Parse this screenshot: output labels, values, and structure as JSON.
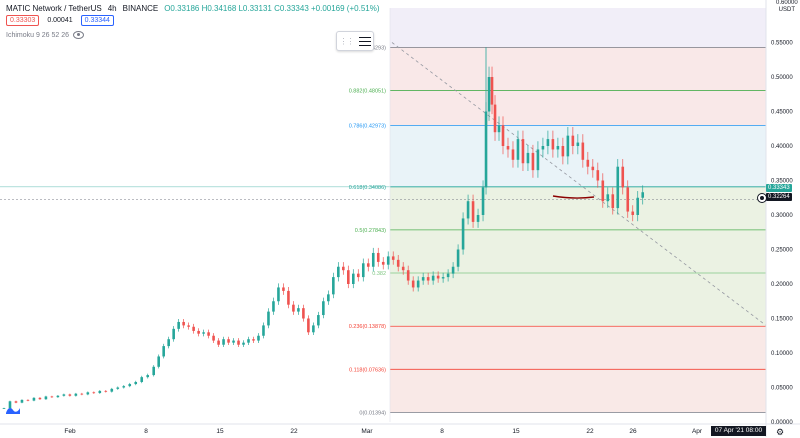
{
  "header": {
    "symbol": "MATIC Network / TetherUS",
    "interval": "4h",
    "exchange": "BINANCE",
    "ohlc": "O0.33186 H0.34168 L0.33131 C0.33343 +0.00169 (+0.51%)",
    "sell_price": "0.33303",
    "spread": "0.00041",
    "buy_price": "0.33344"
  },
  "indicator": {
    "label": "Ichimoku 9 26 52 26",
    "icon": "eye-icon"
  },
  "toolbar": {
    "icon": "menu-lines-icon"
  },
  "axis": {
    "currency": "USDT",
    "top_label": "0.60000",
    "price_labels": [
      "0.55000",
      "0.50000",
      "0.45000",
      "0.40000",
      "0.35000",
      "0.30000",
      "0.25000",
      "0.20000",
      "0.15000",
      "0.10000",
      "0.05000",
      "0.00000"
    ],
    "current_price": "0.33343",
    "crosshair_price": "0.32264",
    "time_labels": [
      "Feb",
      "8",
      "15",
      "22",
      "Mar",
      "8",
      "15",
      "22",
      "26",
      "Apr"
    ],
    "crosshair_time": "07 Apr '21  08:00"
  },
  "fib_levels": [
    {
      "label": "1(0.54293)",
      "price": 0.54293,
      "color": "#787b86"
    },
    {
      "label": "0.882(0.48051)",
      "price": 0.48051,
      "color": "#4caf50"
    },
    {
      "label": "0.786(0.42973)",
      "price": 0.42973,
      "color": "#2196f3"
    },
    {
      "label": "0.618(0.34086)",
      "price": 0.34086,
      "color": "#26a69a"
    },
    {
      "label": "0.5(0.27843)",
      "price": 0.27843,
      "color": "#4caf50"
    },
    {
      "label": "0.382",
      "price": 0.21599,
      "color": "#81c784"
    },
    {
      "label": "0.236(0.13878)",
      "price": 0.13878,
      "color": "#f44336"
    },
    {
      "label": "0.118(0.07636)",
      "price": 0.07636,
      "color": "#f44336"
    },
    {
      "label": "0(0.01394)",
      "price": 0.01394,
      "color": "#787b86"
    }
  ],
  "colors": {
    "up": "#26a69a",
    "down": "#ef5350",
    "fib_upper_fill": "#f8e2e2",
    "fib_mid_fill": "#e6efdc",
    "fib_low_fill": "#f7e3e1",
    "hand_mark": "#8b0000"
  },
  "chart_data": {
    "type": "candlestick",
    "y_range": [
      0.0,
      0.6
    ],
    "series": [
      {
        "x": 0,
        "close": 0.02
      },
      {
        "x": 6,
        "close": 0.03
      },
      {
        "x": 12,
        "close": 0.028
      },
      {
        "x": 18,
        "close": 0.032
      },
      {
        "x": 24,
        "close": 0.031
      },
      {
        "x": 30,
        "close": 0.035
      },
      {
        "x": 36,
        "close": 0.033
      },
      {
        "x": 42,
        "close": 0.037
      },
      {
        "x": 48,
        "close": 0.036
      },
      {
        "x": 54,
        "close": 0.038
      },
      {
        "x": 60,
        "close": 0.04
      },
      {
        "x": 66,
        "close": 0.038
      },
      {
        "x": 72,
        "close": 0.041
      },
      {
        "x": 78,
        "close": 0.04
      },
      {
        "x": 84,
        "close": 0.043
      },
      {
        "x": 90,
        "close": 0.042
      },
      {
        "x": 96,
        "close": 0.045
      },
      {
        "x": 102,
        "close": 0.044
      },
      {
        "x": 108,
        "close": 0.048
      },
      {
        "x": 114,
        "close": 0.05
      },
      {
        "x": 120,
        "close": 0.052
      },
      {
        "x": 126,
        "close": 0.055
      },
      {
        "x": 132,
        "close": 0.058
      },
      {
        "x": 138,
        "close": 0.065
      },
      {
        "x": 144,
        "close": 0.068
      },
      {
        "x": 150,
        "close": 0.08
      },
      {
        "x": 155,
        "close": 0.095
      },
      {
        "x": 160,
        "close": 0.11
      },
      {
        "x": 165,
        "close": 0.12
      },
      {
        "x": 170,
        "close": 0.135
      },
      {
        "x": 175,
        "close": 0.145
      },
      {
        "x": 180,
        "close": 0.14
      },
      {
        "x": 185,
        "close": 0.138
      },
      {
        "x": 190,
        "close": 0.132
      },
      {
        "x": 195,
        "close": 0.128
      },
      {
        "x": 200,
        "close": 0.13
      },
      {
        "x": 205,
        "close": 0.125
      },
      {
        "x": 210,
        "close": 0.118
      },
      {
        "x": 215,
        "close": 0.112
      },
      {
        "x": 220,
        "close": 0.12
      },
      {
        "x": 225,
        "close": 0.115
      },
      {
        "x": 230,
        "close": 0.118
      },
      {
        "x": 235,
        "close": 0.112
      },
      {
        "x": 240,
        "close": 0.115
      },
      {
        "x": 245,
        "close": 0.12
      },
      {
        "x": 250,
        "close": 0.118
      },
      {
        "x": 255,
        "close": 0.125
      },
      {
        "x": 260,
        "close": 0.14
      },
      {
        "x": 265,
        "close": 0.16
      },
      {
        "x": 270,
        "close": 0.175
      },
      {
        "x": 275,
        "close": 0.195
      },
      {
        "x": 280,
        "close": 0.19
      },
      {
        "x": 285,
        "close": 0.17
      },
      {
        "x": 290,
        "close": 0.16
      },
      {
        "x": 295,
        "close": 0.165
      },
      {
        "x": 300,
        "close": 0.15
      },
      {
        "x": 305,
        "close": 0.13
      },
      {
        "x": 310,
        "close": 0.14
      },
      {
        "x": 315,
        "close": 0.155
      },
      {
        "x": 320,
        "close": 0.175
      },
      {
        "x": 325,
        "close": 0.185
      },
      {
        "x": 330,
        "close": 0.21
      },
      {
        "x": 335,
        "close": 0.225
      },
      {
        "x": 340,
        "close": 0.22
      },
      {
        "x": 345,
        "close": 0.2
      },
      {
        "x": 350,
        "close": 0.215
      },
      {
        "x": 355,
        "close": 0.21
      },
      {
        "x": 360,
        "close": 0.23
      },
      {
        "x": 365,
        "close": 0.225
      },
      {
        "x": 370,
        "close": 0.245
      },
      {
        "x": 375,
        "close": 0.232
      },
      {
        "x": 380,
        "close": 0.228
      },
      {
        "x": 385,
        "close": 0.24
      },
      {
        "x": 390,
        "close": 0.235
      },
      {
        "x": 395,
        "close": 0.225
      },
      {
        "x": 400,
        "close": 0.22
      },
      {
        "x": 405,
        "close": 0.205
      },
      {
        "x": 410,
        "close": 0.195
      },
      {
        "x": 415,
        "close": 0.205
      },
      {
        "x": 420,
        "close": 0.21
      },
      {
        "x": 425,
        "close": 0.205
      },
      {
        "x": 430,
        "close": 0.212
      },
      {
        "x": 435,
        "close": 0.208
      },
      {
        "x": 440,
        "close": 0.21
      },
      {
        "x": 445,
        "close": 0.215
      },
      {
        "x": 450,
        "close": 0.225
      },
      {
        "x": 455,
        "close": 0.25
      },
      {
        "x": 460,
        "close": 0.295
      },
      {
        "x": 465,
        "close": 0.32
      },
      {
        "x": 470,
        "close": 0.29
      },
      {
        "x": 475,
        "close": 0.3
      },
      {
        "x": 480,
        "close": 0.34
      },
      {
        "x": 483,
        "close": 0.45
      },
      {
        "x": 486,
        "close": 0.5
      },
      {
        "x": 489,
        "close": 0.46
      },
      {
        "x": 492,
        "close": 0.42
      },
      {
        "x": 496,
        "close": 0.43
      },
      {
        "x": 500,
        "close": 0.4
      },
      {
        "x": 505,
        "close": 0.395
      },
      {
        "x": 510,
        "close": 0.38
      },
      {
        "x": 515,
        "close": 0.41
      },
      {
        "x": 520,
        "close": 0.375
      },
      {
        "x": 525,
        "close": 0.39
      },
      {
        "x": 530,
        "close": 0.365
      },
      {
        "x": 535,
        "close": 0.395
      },
      {
        "x": 540,
        "close": 0.4
      },
      {
        "x": 545,
        "close": 0.41
      },
      {
        "x": 550,
        "close": 0.395
      },
      {
        "x": 555,
        "close": 0.4
      },
      {
        "x": 560,
        "close": 0.385
      },
      {
        "x": 565,
        "close": 0.415
      },
      {
        "x": 570,
        "close": 0.4
      },
      {
        "x": 575,
        "close": 0.405
      },
      {
        "x": 580,
        "close": 0.38
      },
      {
        "x": 585,
        "close": 0.37
      },
      {
        "x": 590,
        "close": 0.365
      },
      {
        "x": 595,
        "close": 0.35
      },
      {
        "x": 600,
        "close": 0.32
      },
      {
        "x": 605,
        "close": 0.33
      },
      {
        "x": 610,
        "close": 0.31
      },
      {
        "x": 615,
        "close": 0.37
      },
      {
        "x": 620,
        "close": 0.34
      },
      {
        "x": 625,
        "close": 0.305
      },
      {
        "x": 630,
        "close": 0.3
      },
      {
        "x": 635,
        "close": 0.325
      },
      {
        "x": 640,
        "close": 0.333
      }
    ]
  }
}
